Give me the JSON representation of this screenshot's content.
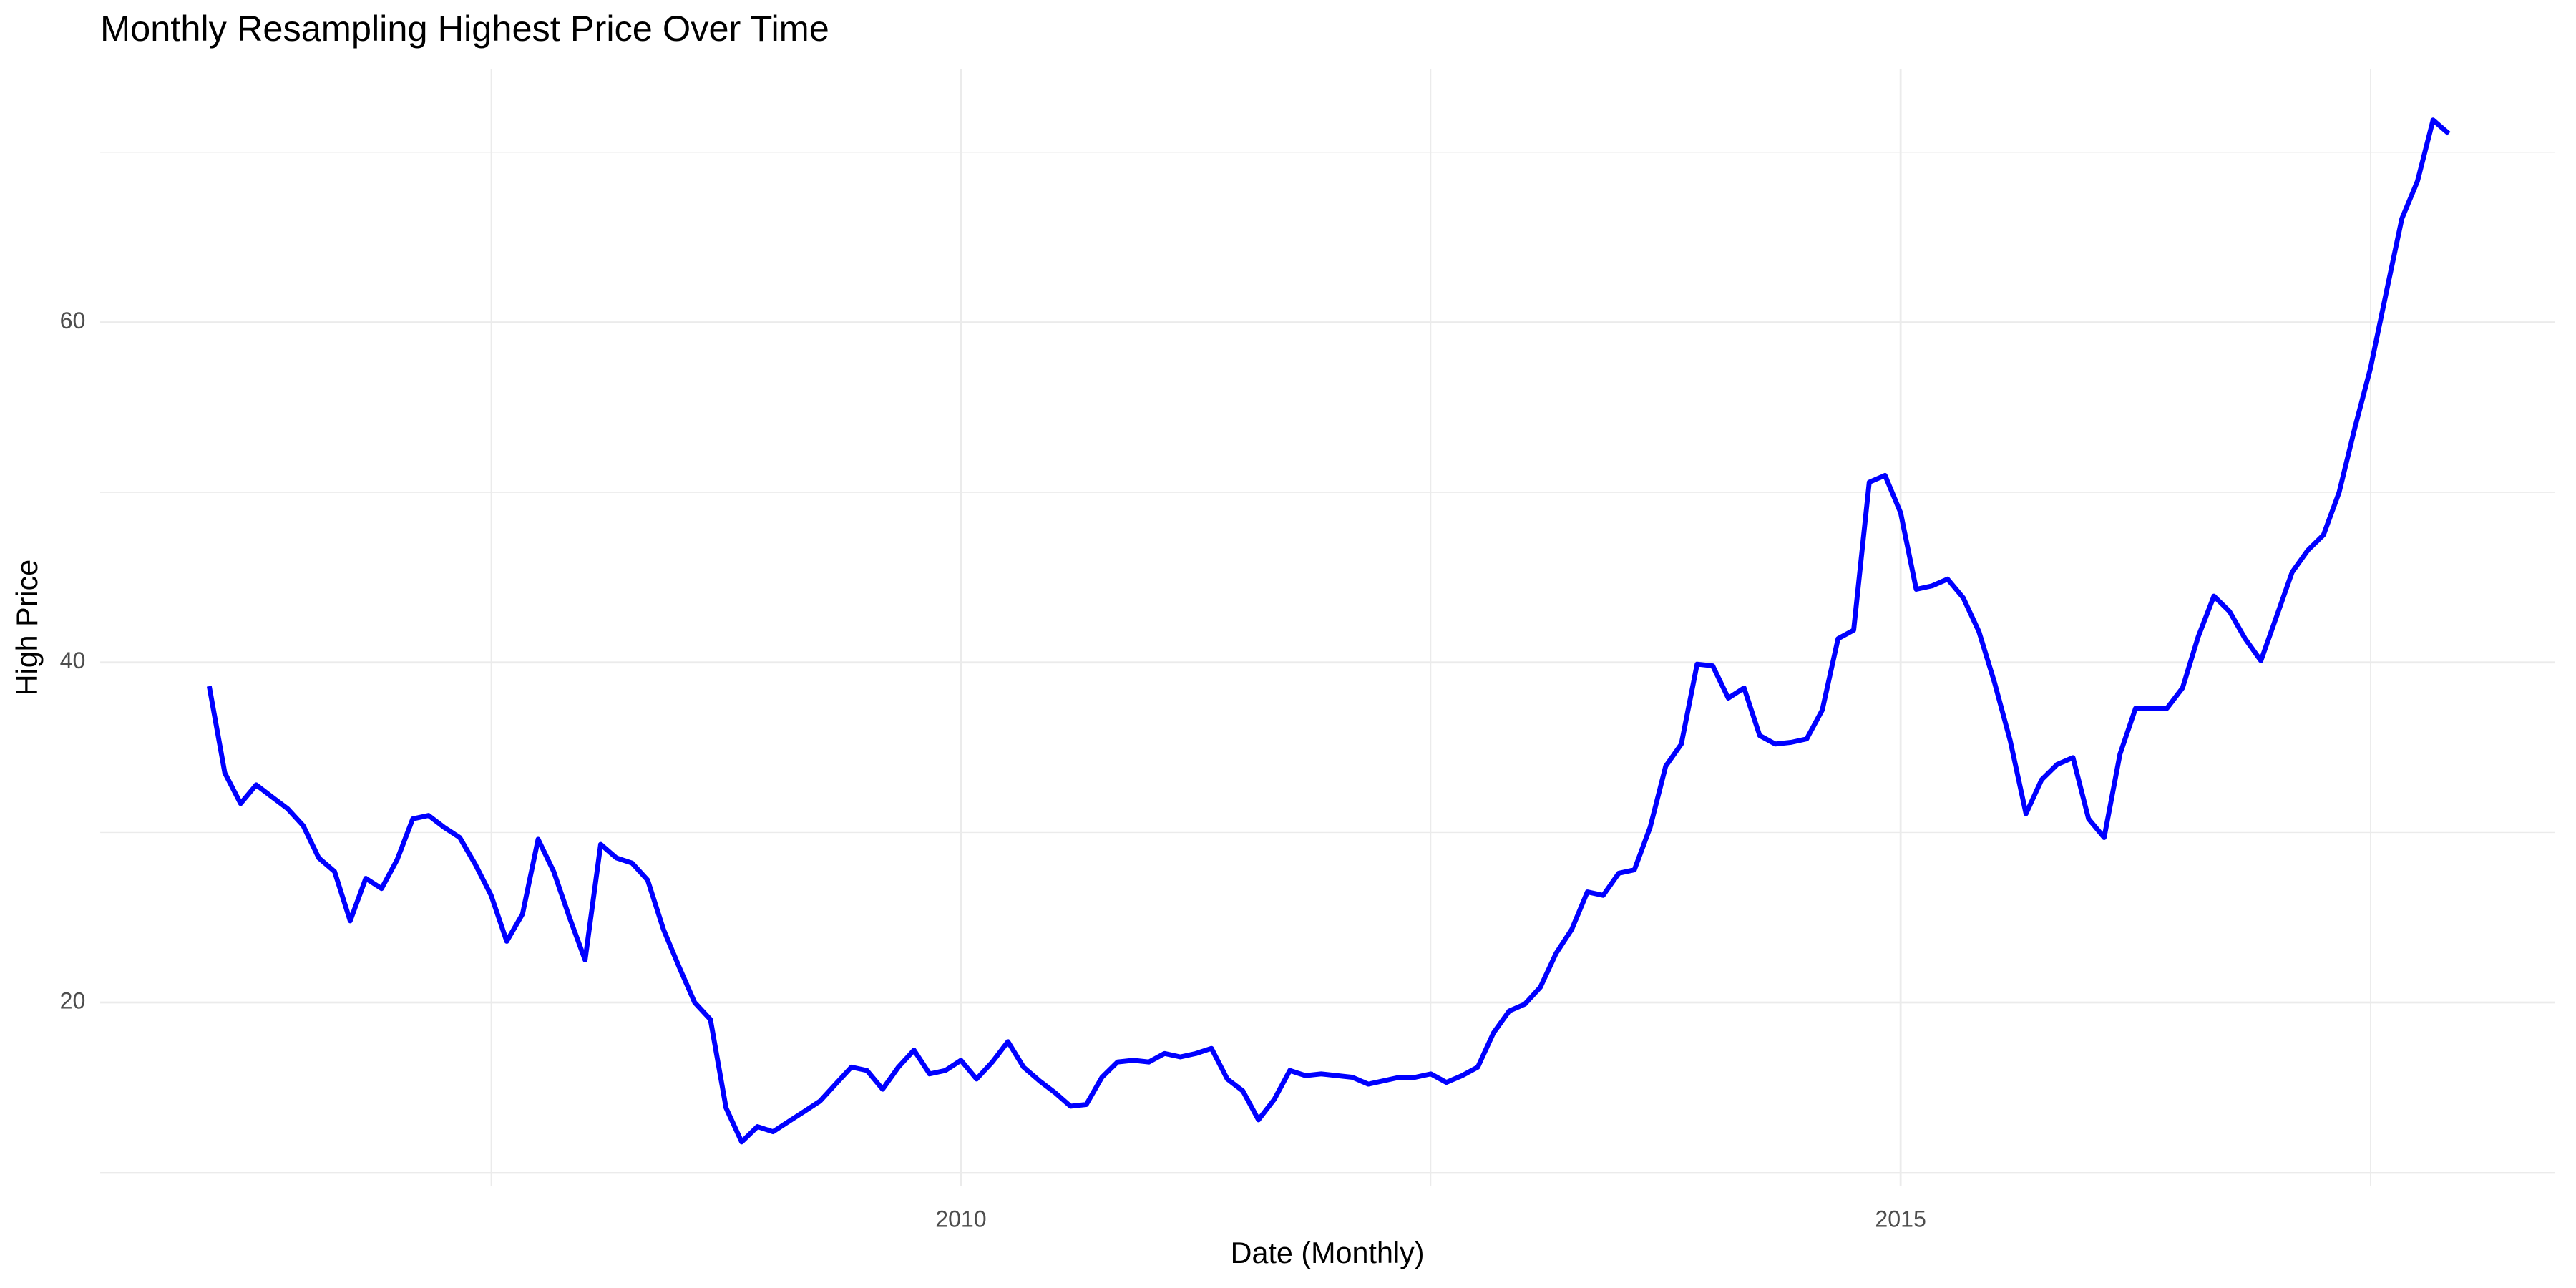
{
  "chart_data": {
    "type": "line",
    "title": "Monthly Resampling Highest Price Over Time",
    "x_label": "Date (Monthly)",
    "y_label": "High Price",
    "color": "#0000ff",
    "grid": true,
    "xlim": [
      2005.42,
      2018.48
    ],
    "xticks": [
      2010,
      2015
    ],
    "xminor": [
      2007.5,
      2012.5,
      2017.5
    ],
    "ylim": [
      9.2,
      74.9
    ],
    "yticks": [
      20,
      40,
      60
    ],
    "yminor": [
      10,
      30,
      50,
      70
    ],
    "x": [
      2006,
      2006.083,
      2006.167,
      2006.25,
      2006.333,
      2006.417,
      2006.5,
      2006.583,
      2006.667,
      2006.75,
      2006.833,
      2006.917,
      2007,
      2007.083,
      2007.167,
      2007.25,
      2007.333,
      2007.417,
      2007.5,
      2007.583,
      2007.667,
      2007.75,
      2007.833,
      2007.917,
      2008,
      2008.083,
      2008.167,
      2008.25,
      2008.333,
      2008.417,
      2008.5,
      2008.583,
      2008.667,
      2008.75,
      2008.833,
      2008.917,
      2009,
      2009.083,
      2009.167,
      2009.25,
      2009.333,
      2009.417,
      2009.5,
      2009.583,
      2009.667,
      2009.75,
      2009.833,
      2009.917,
      2010,
      2010.083,
      2010.167,
      2010.25,
      2010.333,
      2010.417,
      2010.5,
      2010.583,
      2010.667,
      2010.75,
      2010.833,
      2010.917,
      2011,
      2011.083,
      2011.167,
      2011.25,
      2011.333,
      2011.417,
      2011.5,
      2011.583,
      2011.667,
      2011.75,
      2011.833,
      2011.917,
      2012,
      2012.083,
      2012.167,
      2012.25,
      2012.333,
      2012.417,
      2012.5,
      2012.583,
      2012.667,
      2012.75,
      2012.833,
      2012.917,
      2013,
      2013.083,
      2013.167,
      2013.25,
      2013.333,
      2013.417,
      2013.5,
      2013.583,
      2013.667,
      2013.75,
      2013.833,
      2013.917,
      2014,
      2014.083,
      2014.167,
      2014.25,
      2014.333,
      2014.417,
      2014.5,
      2014.583,
      2014.667,
      2014.75,
      2014.833,
      2014.917,
      2015,
      2015.083,
      2015.167,
      2015.25,
      2015.333,
      2015.417,
      2015.5,
      2015.583,
      2015.667,
      2015.75,
      2015.833,
      2015.917,
      2016,
      2016.083,
      2016.167,
      2016.25,
      2016.333,
      2016.417,
      2016.5,
      2016.583,
      2016.667,
      2016.75,
      2016.833,
      2016.917,
      2017,
      2017.083,
      2017.167,
      2017.25,
      2017.333,
      2017.417,
      2017.5,
      2017.583,
      2017.667,
      2017.75,
      2017.833,
      2017.917
    ],
    "values": [
      38.6,
      33.5,
      31.7,
      32.8,
      32.1,
      31.4,
      30.4,
      28.5,
      27.7,
      24.8,
      27.3,
      26.7,
      28.4,
      30.8,
      31.0,
      30.3,
      29.7,
      28.1,
      26.3,
      23.6,
      25.2,
      29.6,
      27.7,
      25.0,
      22.5,
      29.3,
      28.5,
      28.2,
      27.2,
      24.3,
      22.1,
      20.0,
      19.0,
      13.8,
      11.8,
      12.7,
      12.4,
      13.0,
      13.6,
      14.2,
      15.2,
      16.2,
      16.0,
      14.9,
      16.2,
      17.2,
      15.8,
      16.0,
      16.6,
      15.5,
      16.5,
      17.7,
      16.2,
      15.4,
      14.7,
      13.9,
      14.0,
      15.6,
      16.5,
      16.6,
      16.5,
      17.0,
      16.8,
      17.0,
      17.3,
      15.5,
      14.8,
      13.1,
      14.3,
      16.0,
      15.7,
      15.8,
      15.7,
      15.6,
      15.2,
      15.4,
      15.6,
      15.6,
      15.8,
      15.3,
      15.7,
      16.2,
      18.2,
      19.5,
      19.9,
      20.9,
      22.9,
      24.3,
      26.5,
      26.3,
      27.6,
      27.8,
      30.3,
      33.9,
      35.2,
      39.9,
      39.8,
      37.9,
      38.5,
      35.7,
      35.2,
      35.3,
      35.5,
      37.2,
      41.4,
      41.9,
      50.6,
      51.0,
      48.8,
      44.3,
      44.5,
      44.9,
      43.8,
      41.8,
      38.8,
      35.4,
      31.1,
      33.1,
      34.0,
      34.4,
      30.8,
      29.7,
      34.6,
      37.3,
      37.3,
      37.3,
      38.5,
      41.5,
      43.9,
      43.0,
      41.4,
      40.1,
      42.7,
      45.3,
      46.6,
      47.5,
      50.0,
      53.8,
      57.3,
      61.7,
      66.1,
      68.3,
      71.9,
      71.1
    ]
  }
}
